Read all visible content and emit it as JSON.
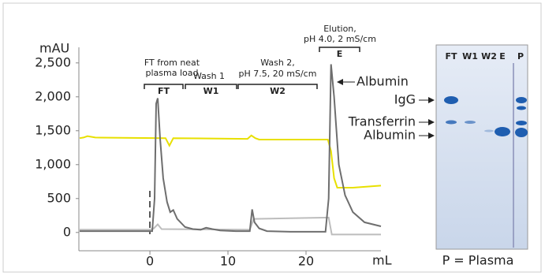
{
  "chart_data": {
    "type": "line",
    "ylabel": "mAU",
    "xlabel": "mL",
    "xlim": [
      -9.1,
      29.6
    ],
    "xticks": [
      0,
      10,
      20
    ],
    "ylim": [
      -270,
      2730
    ],
    "yticks": [
      0,
      500,
      {
        "value": 1000,
        "label": "1,000"
      },
      {
        "value": 1500,
        "label": "1,500"
      },
      {
        "value": 2000,
        "label": "2,000"
      },
      {
        "value": 2500,
        "label": "2,500"
      }
    ],
    "series": [
      {
        "color": "#e8e000",
        "x": [
          -9,
          -8.5,
          -8,
          -7,
          2,
          2.5,
          3,
          12.5,
          13,
          13.5,
          14,
          22.8,
          23.2,
          23.6,
          24,
          26,
          29.6
        ],
        "values": [
          1390,
          1400,
          1420,
          1400,
          1390,
          1280,
          1390,
          1380,
          1430,
          1390,
          1370,
          1370,
          1200,
          800,
          660,
          660,
          690
        ]
      },
      {
        "color": "#bdbdbd",
        "x": [
          -9,
          0,
          0.5,
          1,
          1.5,
          12.8,
          13.3,
          22.9,
          23.3,
          29.6
        ],
        "values": [
          40,
          40,
          60,
          120,
          50,
          40,
          200,
          220,
          -30,
          -30
        ]
      },
      {
        "color": "#6e6e6e",
        "x": [
          -9,
          -1,
          0.3,
          0.6,
          0.8,
          1.0,
          1.3,
          1.7,
          2.2,
          2.6,
          3.0,
          3.5,
          4.5,
          5.5,
          6.5,
          7.2,
          8,
          9,
          11,
          12.8,
          13.1,
          13.4,
          14,
          15,
          18,
          22.5,
          22.9,
          23.2,
          23.6,
          24.2,
          25,
          26,
          27.5,
          29.6
        ],
        "values": [
          20,
          20,
          20,
          500,
          1900,
          1980,
          1400,
          800,
          450,
          300,
          330,
          200,
          80,
          50,
          40,
          70,
          50,
          30,
          20,
          20,
          340,
          150,
          60,
          20,
          10,
          10,
          500,
          2480,
          2000,
          1000,
          550,
          300,
          150,
          90
        ]
      }
    ],
    "regions": [
      {
        "lines": [
          "FT from neat",
          "plasma load"
        ],
        "tag": "FT"
      },
      {
        "lines": [
          "Wash 1"
        ],
        "tag": "W1"
      },
      {
        "lines": [
          "Wash 2,",
          "pH 7.5, 20 mS/cm"
        ],
        "tag": "W2"
      },
      {
        "lines": [
          "Elution,",
          "pH 4.0, 2 mS/cm"
        ],
        "tag": "E"
      }
    ],
    "peak_label": "Albumin"
  },
  "gel": {
    "lanes": [
      "FT",
      "W1",
      "W2",
      "E",
      "P"
    ],
    "markers": [
      "IgG",
      "Transferrin",
      "Albumin"
    ],
    "caption": "P = Plasma"
  }
}
